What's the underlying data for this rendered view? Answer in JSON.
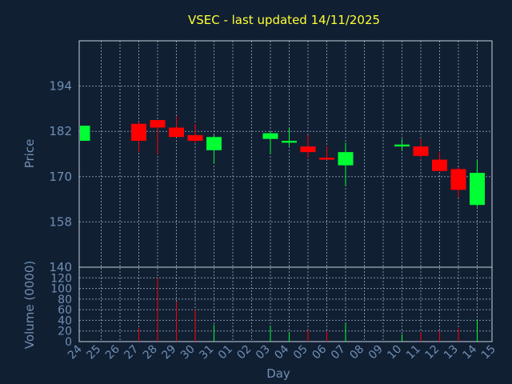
{
  "chart_data": {
    "type": "candlestick",
    "title": "VSEC - last updated 14/11/2025",
    "xlabel": "Day",
    "price_panel": {
      "ylabel": "Price",
      "ylim": [
        146,
        206
      ],
      "yticks": [
        194,
        182,
        170,
        158
      ],
      "grid": true
    },
    "volume_panel": {
      "ylabel": "Volume (0000)",
      "ylim": [
        0,
        140
      ],
      "yticks": [
        140,
        120,
        100,
        80,
        60,
        40,
        20,
        0
      ],
      "grid": true
    },
    "x_ticks": [
      "24",
      "25",
      "26",
      "27",
      "28",
      "29",
      "30",
      "31",
      "01",
      "02",
      "03",
      "04",
      "05",
      "06",
      "07",
      "08",
      "09",
      "10",
      "11",
      "12",
      "13",
      "14",
      "15"
    ],
    "colors": {
      "up": "#00ff33",
      "down": "#ff0000"
    },
    "candles": [
      {
        "x": "24",
        "open": 179.5,
        "high": 183.5,
        "low": 179.5,
        "close": 183.5,
        "volume": 0
      },
      {
        "x": "27",
        "open": 184.0,
        "high": 184.5,
        "low": 176.5,
        "close": 179.5,
        "volume": 25
      },
      {
        "x": "28",
        "open": 185.0,
        "high": 185.0,
        "low": 176.0,
        "close": 183.0,
        "volume": 120
      },
      {
        "x": "29",
        "open": 183.0,
        "high": 186.0,
        "low": 180.5,
        "close": 180.5,
        "volume": 75
      },
      {
        "x": "30",
        "open": 181.0,
        "high": 184.0,
        "low": 179.0,
        "close": 179.5,
        "volume": 60
      },
      {
        "x": "31",
        "open": 177.0,
        "high": 181.0,
        "low": 173.5,
        "close": 180.5,
        "volume": 32
      },
      {
        "x": "03",
        "open": 180.0,
        "high": 182.0,
        "low": 176.0,
        "close": 181.5,
        "volume": 30
      },
      {
        "x": "04",
        "open": 179.0,
        "high": 183.0,
        "low": 178.0,
        "close": 179.5,
        "volume": 18
      },
      {
        "x": "05",
        "open": 178.0,
        "high": 181.0,
        "low": 175.0,
        "close": 176.5,
        "volume": 22
      },
      {
        "x": "06",
        "open": 175.0,
        "high": 178.0,
        "low": 174.5,
        "close": 174.5,
        "volume": 20
      },
      {
        "x": "07",
        "open": 173.0,
        "high": 179.0,
        "low": 167.5,
        "close": 176.5,
        "volume": 35
      },
      {
        "x": "10",
        "open": 178.0,
        "high": 180.0,
        "low": 177.0,
        "close": 178.5,
        "volume": 14
      },
      {
        "x": "11",
        "open": 178.0,
        "high": 180.0,
        "low": 175.0,
        "close": 175.5,
        "volume": 18
      },
      {
        "x": "12",
        "open": 174.5,
        "high": 176.5,
        "low": 171.5,
        "close": 171.5,
        "volume": 20
      },
      {
        "x": "13",
        "open": 172.0,
        "high": 172.5,
        "low": 164.5,
        "close": 166.5,
        "volume": 25
      },
      {
        "x": "14",
        "open": 162.5,
        "high": 174.5,
        "low": 162.0,
        "close": 171.0,
        "volume": 42
      }
    ]
  }
}
